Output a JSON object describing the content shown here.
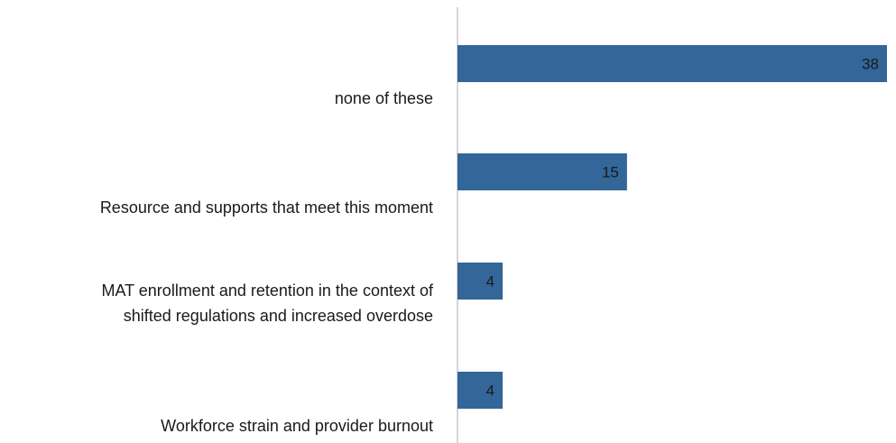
{
  "chart_data": {
    "type": "bar",
    "orientation": "horizontal",
    "categories": [
      "none of these",
      "Resource and supports that meet this moment",
      "MAT enrollment and retention in the context of shifted regulations and increased overdose",
      "Workforce strain and provider burnout"
    ],
    "category_label_lines": [
      [
        "none of these"
      ],
      [
        "Resource and supports that meet this moment"
      ],
      [
        "MAT enrollment and retention in the context of",
        "shifted regulations and increased overdose"
      ],
      [
        "Workforce strain and provider burnout"
      ]
    ],
    "values": [
      38,
      15,
      4,
      4
    ],
    "title": "",
    "xlabel": "",
    "ylabel": "",
    "xlim": [
      0,
      38
    ],
    "grid": false,
    "legend": "none",
    "data_labels": true,
    "colors": {
      "bar": "#336699",
      "axis": "#c8c8c8",
      "text": "#1a1a1a"
    }
  }
}
